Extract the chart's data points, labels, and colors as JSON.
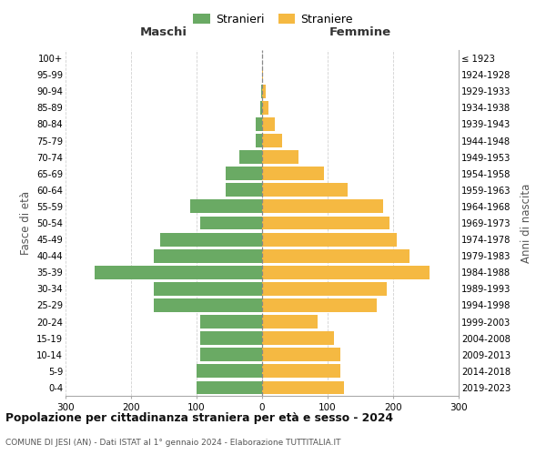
{
  "age_groups": [
    "0-4",
    "5-9",
    "10-14",
    "15-19",
    "20-24",
    "25-29",
    "30-34",
    "35-39",
    "40-44",
    "45-49",
    "50-54",
    "55-59",
    "60-64",
    "65-69",
    "70-74",
    "75-79",
    "80-84",
    "85-89",
    "90-94",
    "95-99",
    "100+"
  ],
  "birth_years": [
    "2019-2023",
    "2014-2018",
    "2009-2013",
    "2004-2008",
    "1999-2003",
    "1994-1998",
    "1989-1993",
    "1984-1988",
    "1979-1983",
    "1974-1978",
    "1969-1973",
    "1964-1968",
    "1959-1963",
    "1954-1958",
    "1949-1953",
    "1944-1948",
    "1939-1943",
    "1934-1938",
    "1929-1933",
    "1924-1928",
    "≤ 1923"
  ],
  "males": [
    100,
    100,
    95,
    95,
    95,
    165,
    165,
    255,
    165,
    155,
    95,
    110,
    55,
    55,
    35,
    10,
    10,
    3,
    1,
    0,
    0
  ],
  "females": [
    125,
    120,
    120,
    110,
    85,
    175,
    190,
    255,
    225,
    205,
    195,
    185,
    130,
    95,
    55,
    30,
    20,
    10,
    5,
    2,
    0
  ],
  "male_color": "#6aaa64",
  "female_color": "#f5b942",
  "title": "Popolazione per cittadinanza straniera per età e sesso - 2024",
  "subtitle": "COMUNE DI JESI (AN) - Dati ISTAT al 1° gennaio 2024 - Elaborazione TUTTITALIA.IT",
  "xlabel_left": "Maschi",
  "xlabel_right": "Femmine",
  "ylabel_left": "Fasce di età",
  "ylabel_right": "Anni di nascita",
  "legend_male": "Stranieri",
  "legend_female": "Straniere",
  "xlim": 300,
  "background_color": "#ffffff",
  "grid_color": "#cccccc",
  "bar_height": 0.82
}
